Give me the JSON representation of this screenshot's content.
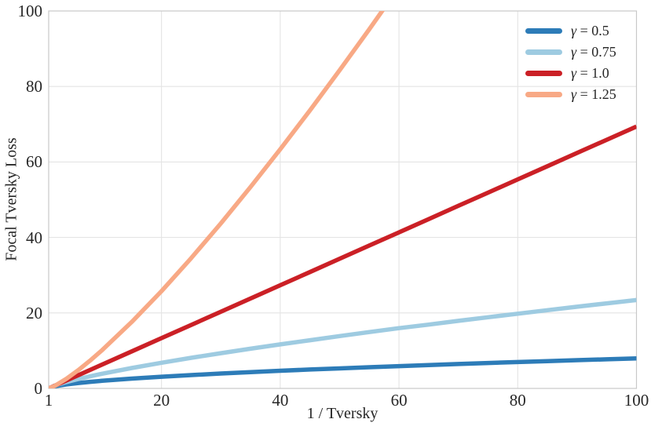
{
  "chart_data": {
    "type": "line",
    "title": "",
    "xlabel": "1 / Tversky",
    "ylabel": "Focal Tversky Loss",
    "xlim": [
      1,
      100
    ],
    "ylim": [
      0,
      100
    ],
    "x_ticks": [
      1,
      20,
      40,
      60,
      80,
      100
    ],
    "y_ticks": [
      0,
      20,
      40,
      60,
      80,
      100
    ],
    "grid": true,
    "legend_position": "upper right",
    "legend_frame": false,
    "x": [
      1,
      2,
      4,
      6,
      8,
      10,
      15,
      20,
      25,
      30,
      35,
      40,
      45,
      50,
      55,
      60,
      65,
      70,
      75,
      80,
      85,
      90,
      95,
      100
    ],
    "series": [
      {
        "name": "γ = 0.5",
        "label_symbol": "γ",
        "label_rest": " = 0.5",
        "color": "#2d7cb8",
        "values": [
          0,
          0.57,
          1.07,
          1.44,
          1.75,
          2.02,
          2.6,
          3.1,
          3.54,
          3.95,
          4.32,
          4.67,
          5.0,
          5.31,
          5.62,
          5.91,
          6.19,
          6.46,
          6.73,
          6.98,
          7.23,
          7.48,
          7.72,
          7.95
        ]
      },
      {
        "name": "γ = 0.75",
        "label_symbol": "γ",
        "label_rest": " = 0.75",
        "color": "#9ecbe1",
        "values": [
          0,
          0.75,
          1.7,
          2.5,
          3.21,
          3.88,
          5.41,
          6.8,
          8.1,
          9.33,
          10.52,
          11.66,
          12.77,
          13.86,
          14.92,
          15.96,
          16.9,
          17.89,
          18.85,
          19.79,
          20.72,
          21.65,
          22.54,
          23.4
        ]
      },
      {
        "name": "γ = 1.0",
        "label_symbol": "γ",
        "label_rest": " = 1.0",
        "color": "#cb2026",
        "values": [
          0,
          0.7,
          2.1,
          3.51,
          4.91,
          6.31,
          9.81,
          13.32,
          16.82,
          20.33,
          23.83,
          27.34,
          30.84,
          34.35,
          37.85,
          41.36,
          44.86,
          48.37,
          51.87,
          55.38,
          58.88,
          62.39,
          65.89,
          69.4
        ]
      },
      {
        "name": "γ = 1.25",
        "label_symbol": "γ",
        "label_rest": " = 1.25",
        "color": "#f8a985",
        "values": [
          0,
          0.65,
          2.57,
          4.86,
          7.4,
          10.13,
          17.6,
          25.77,
          34.53,
          43.74,
          53.38,
          63.37,
          73.65,
          84.31,
          95.16,
          106.34,
          null,
          null,
          null,
          null,
          null,
          null,
          null,
          null
        ]
      }
    ]
  },
  "axes": {
    "xlabel": "1 / Tversky",
    "ylabel": "Focal Tversky Loss"
  },
  "style_colors": {
    "grid": "#e4e4e4",
    "spine": "#c8c8c8",
    "text": "#262626",
    "background": "#ffffff"
  }
}
